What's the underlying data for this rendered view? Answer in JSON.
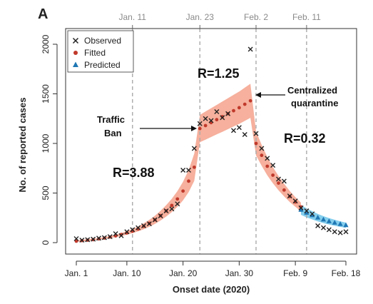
{
  "chart_data": {
    "type": "scatter",
    "panel_label": "A",
    "xlabel": "Onset date (2020)",
    "ylabel": "No. of reported cases",
    "xlim": [
      1,
      49
    ],
    "ylim": [
      0,
      2000
    ],
    "x_ticks": [
      {
        "x": 1,
        "label": "Jan. 1"
      },
      {
        "x": 10,
        "label": "Jan. 10"
      },
      {
        "x": 20,
        "label": "Jan. 20"
      },
      {
        "x": 30,
        "label": "Jan. 30"
      },
      {
        "x": 40,
        "label": "Feb. 9"
      },
      {
        "x": 49,
        "label": "Feb. 18"
      }
    ],
    "y_ticks": [
      0,
      500,
      1000,
      1500,
      2000
    ],
    "top_ticks": [
      {
        "x": 11,
        "label": "Jan. 11"
      },
      {
        "x": 23,
        "label": "Jan. 23"
      },
      {
        "x": 33,
        "label": "Feb. 2"
      },
      {
        "x": 42,
        "label": "Feb. 11"
      }
    ],
    "legend": {
      "position": "top-left",
      "entries": [
        {
          "label": "Observed",
          "marker": "x",
          "color": "#222222"
        },
        {
          "label": "Fitted",
          "marker": "dot",
          "color": "#c0392b"
        },
        {
          "label": "Predicted",
          "marker": "triangle",
          "color": "#1f77b4"
        }
      ]
    },
    "colors": {
      "fitted_band": "#f4a28c",
      "predicted_band": "#6ec6ea",
      "fitted": "#c0392b",
      "predicted": "#1f77b4",
      "observed": "#222222",
      "vline": "#aaaaaa"
    },
    "series": [
      {
        "name": "Observed",
        "x": [
          1,
          2,
          3,
          4,
          5,
          6,
          7,
          8,
          9,
          10,
          11,
          12,
          13,
          14,
          15,
          16,
          17,
          18,
          19,
          20,
          21,
          22,
          23,
          24,
          25,
          26,
          27,
          28,
          29,
          30,
          31,
          32,
          33,
          34,
          35,
          36,
          37,
          38,
          39,
          40,
          41,
          42,
          43,
          44,
          45,
          46,
          47,
          48,
          49
        ],
        "values": [
          40,
          25,
          30,
          35,
          45,
          50,
          60,
          90,
          70,
          110,
          130,
          150,
          170,
          190,
          230,
          270,
          320,
          340,
          390,
          730,
          730,
          950,
          1200,
          1250,
          1230,
          1320,
          1260,
          1300,
          1130,
          1160,
          1090,
          1950,
          1100,
          950,
          850,
          780,
          640,
          620,
          470,
          420,
          350,
          320,
          290,
          170,
          150,
          130,
          110,
          100,
          110
        ]
      },
      {
        "name": "Fitted",
        "x": [
          1,
          2,
          3,
          4,
          5,
          6,
          7,
          8,
          9,
          10,
          11,
          12,
          13,
          14,
          15,
          16,
          17,
          18,
          19,
          20,
          21,
          22,
          23,
          24,
          25,
          26,
          27,
          28,
          29,
          30,
          31,
          32,
          33,
          34,
          35,
          36,
          37,
          38,
          39,
          40,
          41
        ],
        "values": [
          15,
          20,
          25,
          30,
          38,
          46,
          56,
          68,
          82,
          98,
          116,
          138,
          165,
          195,
          230,
          272,
          320,
          375,
          440,
          520,
          620,
          760,
          1150,
          1180,
          1210,
          1240,
          1270,
          1300,
          1330,
          1360,
          1395,
          1430,
          1000,
          880,
          770,
          680,
          600,
          530,
          465,
          410,
          360
        ]
      },
      {
        "name": "Predicted",
        "x": [
          41,
          42,
          43,
          44,
          45,
          46,
          47,
          48,
          49
        ],
        "values": [
          330,
          300,
          275,
          252,
          232,
          215,
          200,
          187,
          175
        ]
      }
    ],
    "annotations": [
      {
        "text": "R=3.88"
      },
      {
        "text": "R=1.25"
      },
      {
        "text": "R=0.32"
      },
      {
        "text": "Traffic"
      },
      {
        "text": "Ban"
      },
      {
        "text": "Centralized"
      },
      {
        "text": "quarantine"
      }
    ]
  }
}
